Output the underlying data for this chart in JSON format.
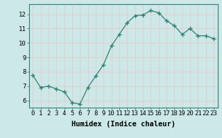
{
  "x": [
    0,
    1,
    2,
    3,
    4,
    5,
    6,
    7,
    8,
    9,
    10,
    11,
    12,
    13,
    14,
    15,
    16,
    17,
    18,
    19,
    20,
    21,
    22,
    23
  ],
  "y": [
    7.75,
    6.9,
    7.0,
    6.8,
    6.6,
    5.85,
    5.75,
    6.9,
    7.7,
    8.5,
    9.8,
    10.6,
    11.4,
    11.9,
    11.95,
    12.25,
    12.1,
    11.55,
    11.2,
    10.6,
    11.0,
    10.5,
    10.5,
    10.3
  ],
  "line_color": "#2e7d6e",
  "marker": "+",
  "marker_size": 4.0,
  "linewidth": 0.9,
  "xlabel": "Humidex (Indice chaleur)",
  "xlabel_fontsize": 7.5,
  "ylim": [
    5.5,
    12.7
  ],
  "xlim": [
    -0.5,
    23.5
  ],
  "yticks": [
    6,
    7,
    8,
    9,
    10,
    11,
    12
  ],
  "xticks": [
    0,
    1,
    2,
    3,
    4,
    5,
    6,
    7,
    8,
    9,
    10,
    11,
    12,
    13,
    14,
    15,
    16,
    17,
    18,
    19,
    20,
    21,
    22,
    23
  ],
  "bg_color": "#cce8e8",
  "grid_color": "#e8c8c8",
  "tick_fontsize": 6.5,
  "axis_color": "#2e7d6e"
}
